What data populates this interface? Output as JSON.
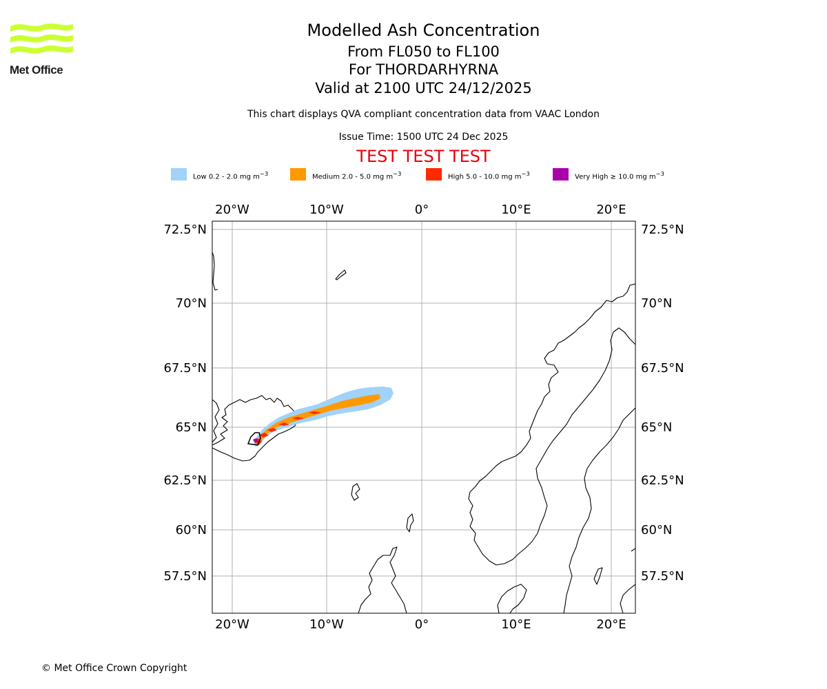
{
  "logo": {
    "text": "Met Office",
    "color": "#ccff33"
  },
  "titles": {
    "main": "Modelled Ash Concentration",
    "levels": "From FL050 to FL100",
    "volcano": "For THORDARHYRNA",
    "valid": "Valid at 2100 UTC 24/12/2025"
  },
  "subtitle": "This chart displays QVA compliant concentration data from VAAC London",
  "issue_time": "Issue Time: 1500 UTC 24 Dec 2025",
  "test_banner": "TEST TEST TEST",
  "legend": [
    {
      "label_prefix": "Low 0.2 - 2.0 mg m",
      "color": "#a0d2fa"
    },
    {
      "label_prefix": "Medium 2.0 - 5.0 mg m",
      "color": "#ff9900"
    },
    {
      "label_prefix": "High 5.0 - 10.0 mg m",
      "color": "#ff2a00"
    },
    {
      "label_prefix": "Very High ≥ 10.0 mg m",
      "color": "#aa00aa"
    }
  ],
  "legend_unit_exponent": "−3",
  "map": {
    "lon_ticks": [
      "20°W",
      "10°W",
      "0°",
      "10°E",
      "20°E"
    ],
    "lat_ticks": [
      "72.5°N",
      "70°N",
      "67.5°N",
      "65°N",
      "62.5°N",
      "60°N",
      "57.5°N"
    ]
  },
  "copyright": "© Met Office Crown Copyright"
}
